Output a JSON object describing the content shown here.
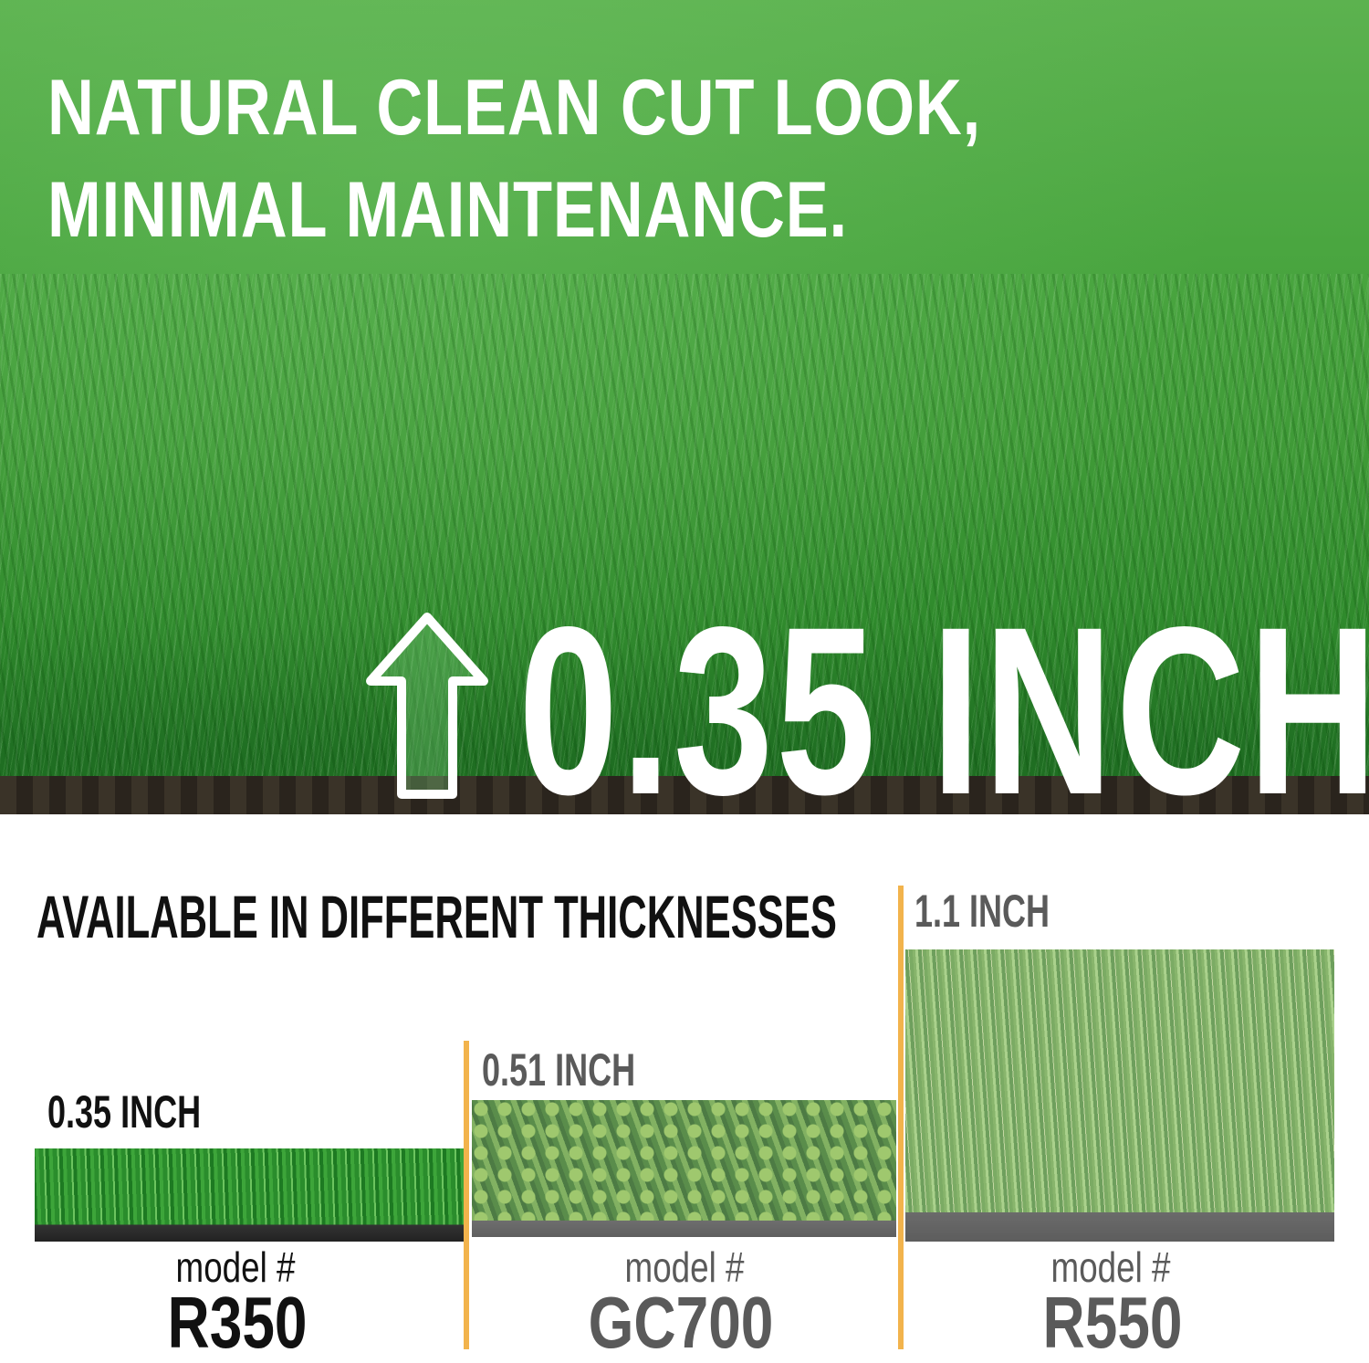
{
  "hero": {
    "headline_line1": "NATURAL CLEAN CUT LOOK,",
    "headline_line2": "MINIMAL MAINTENANCE.",
    "pile_height": "0.35 INCH",
    "arrow_icon": "up-arrow-icon"
  },
  "comparison": {
    "heading": "AVAILABLE IN DIFFERENT THICKNESSES",
    "accent_color": "#f2b34c",
    "products": [
      {
        "thickness": "0.35 INCH",
        "model_label": "model #",
        "model": "R350",
        "text_color": "#111111"
      },
      {
        "thickness": "0.51 INCH",
        "model_label": "model #",
        "model": "GC700",
        "text_color": "#5a5a5a"
      },
      {
        "thickness": "1.1 INCH",
        "model_label": "model #",
        "model": "R550",
        "text_color": "#5a5a5a"
      }
    ]
  }
}
